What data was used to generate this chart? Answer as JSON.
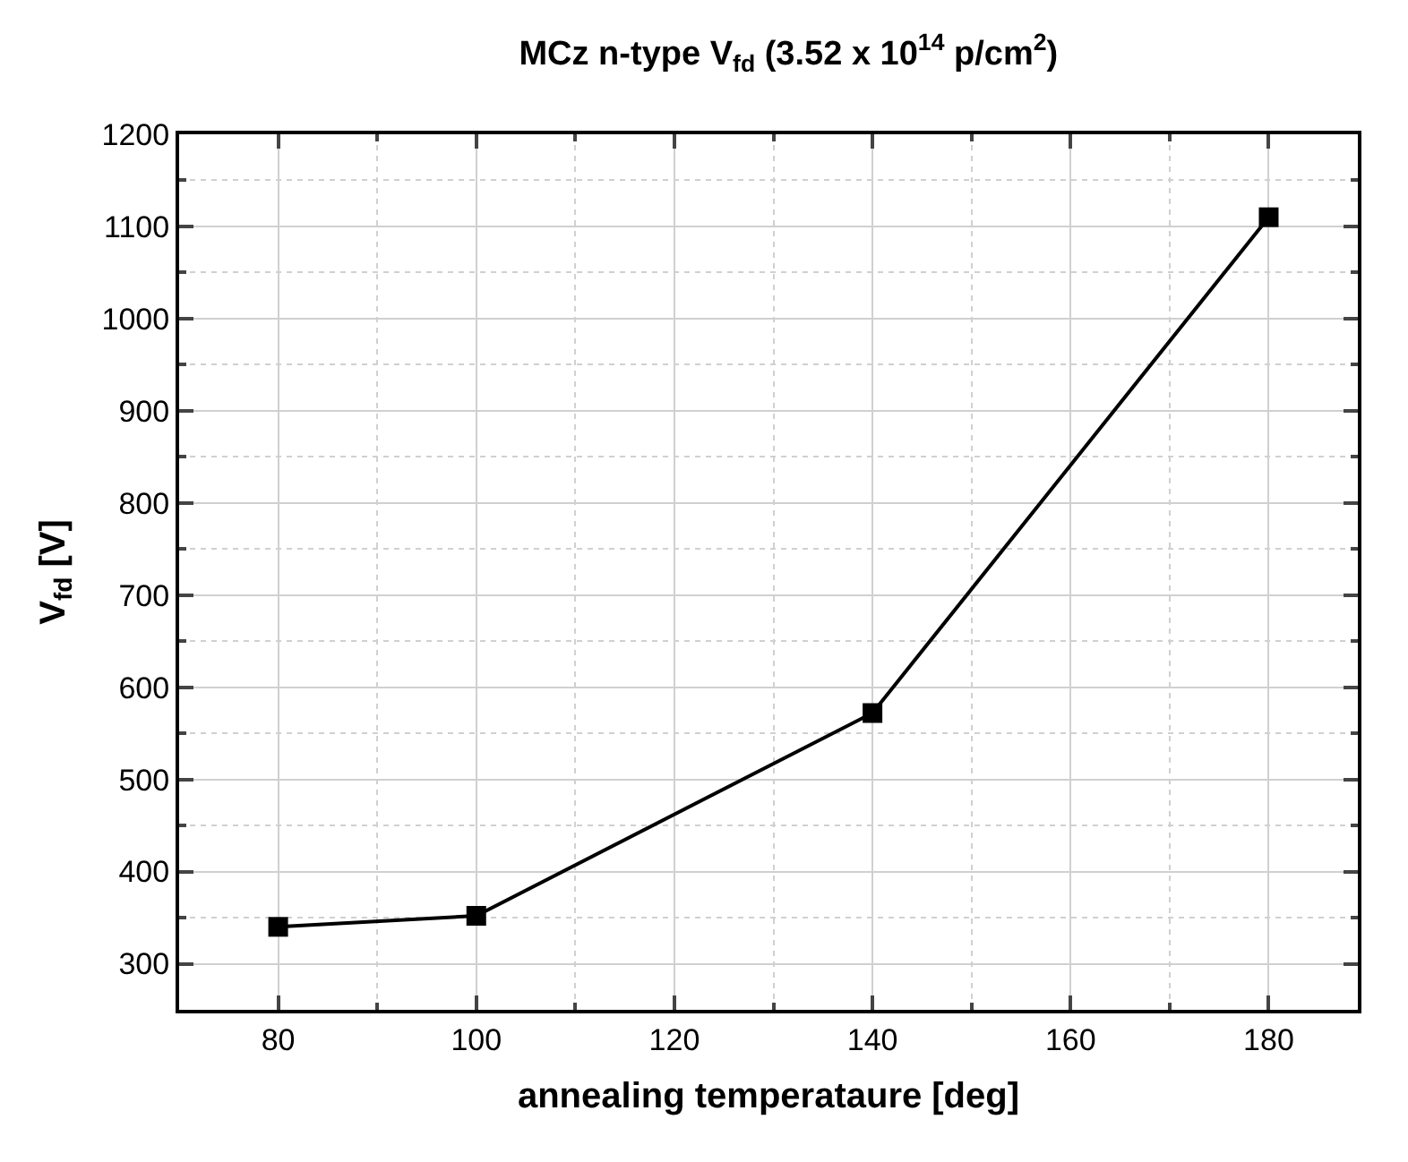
{
  "chart_data": {
    "type": "line",
    "title": "MCz n-type V$_{fd}$ (3.52 x 10$^{14}$ p/cm$^{2}$)",
    "xlabel": "annealing temperataure [deg]",
    "ylabel": "V$_{fd}$ [V]",
    "x": [
      80,
      100,
      140,
      180
    ],
    "series": [
      {
        "color": "#000000",
        "values": [
          340,
          352,
          572,
          1110
        ]
      }
    ],
    "xlim": [
      70,
      189
    ],
    "xticks": [
      80,
      100,
      120,
      140,
      160,
      180
    ],
    "ylim": [
      250,
      1200
    ],
    "yticks": [
      300,
      400,
      500,
      600,
      700,
      800,
      900,
      1000,
      1100,
      1200
    ],
    "grid": true,
    "marker": "square",
    "line_style": "solid",
    "legend": false
  }
}
